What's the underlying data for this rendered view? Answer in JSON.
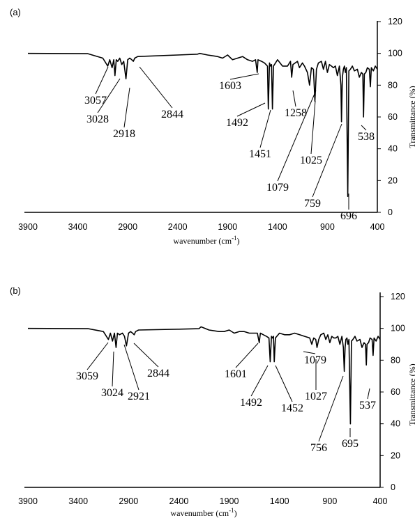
{
  "chart_data": [
    {
      "type": "line",
      "panel_label": "(a)",
      "xlabel": "wavenumber (cm-1)",
      "xlabel_main": "wavenumber (cm",
      "xlabel_sup": "-1",
      "xlabel_close": ")",
      "ylabel": "Transmittance (%)",
      "xlim": [
        3900,
        400
      ],
      "ylim": [
        0,
        120
      ],
      "x_ticks": [
        "3900",
        "3400",
        "2900",
        "2400",
        "1900",
        "1400",
        "900",
        "400"
      ],
      "y_ticks": [
        "0",
        "20",
        "40",
        "60",
        "80",
        "100",
        "120"
      ],
      "series": [
        {
          "x": [
            3900,
            3300,
            3150,
            3100,
            3080,
            3057,
            3040,
            3028,
            3015,
            3000,
            2980,
            2960,
            2940,
            2918,
            2900,
            2880,
            2860,
            2844,
            2830,
            2800,
            2400,
            2200,
            2180,
            2100,
            2000,
            1950,
            1900,
            1850,
            1800,
            1750,
            1700,
            1650,
            1620,
            1603,
            1595,
            1560,
            1530,
            1500,
            1492,
            1480,
            1470,
            1460,
            1451,
            1440,
            1400,
            1350,
            1300,
            1270,
            1258,
            1245,
            1200,
            1180,
            1150,
            1130,
            1100,
            1079,
            1060,
            1040,
            1025,
            1010,
            990,
            960,
            940,
            920,
            900,
            880,
            860,
            840,
            820,
            800,
            780,
            765,
            759,
            750,
            740,
            730,
            720,
            710,
            696,
            685,
            670,
            650,
            630,
            600,
            580,
            560,
            545,
            538,
            530,
            515,
            500,
            480,
            470,
            460,
            440,
            420,
            400
          ],
          "y": [
            100,
            99.8,
            97,
            92,
            96,
            91,
            96,
            86,
            96,
            95,
            97,
            93,
            95,
            84,
            96,
            97,
            96,
            95,
            97,
            98,
            99,
            99.5,
            100,
            99,
            98,
            97,
            99,
            96,
            97,
            98,
            96,
            95,
            96,
            88,
            96,
            95,
            94,
            92,
            65,
            94,
            92,
            93,
            65,
            92,
            96,
            92,
            92,
            95,
            85,
            93,
            95,
            91,
            94,
            92,
            88,
            80,
            91,
            90,
            70,
            90,
            94,
            95,
            90,
            95,
            88,
            93,
            92,
            91,
            92,
            86,
            92,
            80,
            57,
            85,
            90,
            92,
            88,
            91,
            10,
            89,
            90,
            92,
            89,
            90,
            85,
            88,
            87,
            60,
            87,
            88,
            91,
            90,
            79,
            91,
            89,
            92,
            90
          ]
        }
      ],
      "annotations": [
        "3057",
        "3028",
        "2918",
        "2844",
        "1603",
        "1492",
        "1451",
        "1258",
        "1079",
        "1025",
        "759",
        "696",
        "538"
      ]
    },
    {
      "type": "line",
      "panel_label": "(b)",
      "xlabel": "wavenumber (cm-1)",
      "xlabel_main": "wavenumber (cm",
      "xlabel_sup": "-1",
      "xlabel_close": ")",
      "ylabel": "Transmittance (%)",
      "xlim": [
        3900,
        400
      ],
      "ylim": [
        0,
        120
      ],
      "x_ticks": [
        "3900",
        "3400",
        "2900",
        "2400",
        "1900",
        "1400",
        "900",
        "400"
      ],
      "y_ticks": [
        "0",
        "20",
        "40",
        "60",
        "80",
        "100",
        "120"
      ],
      "series": [
        {
          "x": [
            3900,
            3300,
            3150,
            3100,
            3080,
            3059,
            3040,
            3024,
            3010,
            2990,
            2960,
            2940,
            2921,
            2900,
            2880,
            2860,
            2844,
            2830,
            2800,
            2400,
            2200,
            2180,
            2100,
            2000,
            1950,
            1900,
            1850,
            1800,
            1750,
            1700,
            1650,
            1620,
            1601,
            1590,
            1560,
            1530,
            1505,
            1492,
            1480,
            1470,
            1460,
            1452,
            1440,
            1400,
            1350,
            1300,
            1250,
            1200,
            1150,
            1100,
            1079,
            1060,
            1040,
            1027,
            1010,
            990,
            960,
            940,
            920,
            900,
            880,
            860,
            840,
            820,
            800,
            780,
            765,
            756,
            748,
            740,
            730,
            720,
            710,
            695,
            685,
            670,
            650,
            630,
            600,
            580,
            560,
            545,
            537,
            530,
            515,
            500,
            480,
            470,
            460,
            440,
            420,
            400
          ],
          "y": [
            100,
            99.8,
            98,
            93,
            97,
            92,
            97,
            88,
            97,
            96,
            97,
            95,
            89,
            97,
            98,
            97,
            96,
            98,
            99,
            99.5,
            99.8,
            101,
            99,
            98,
            98,
            99,
            97,
            98,
            98,
            97,
            97,
            97,
            91,
            97,
            96,
            95,
            94,
            79,
            95,
            94,
            95,
            79,
            94,
            97,
            96,
            96,
            97,
            96,
            95,
            94,
            90,
            94,
            93,
            88,
            93,
            96,
            97,
            93,
            96,
            91,
            95,
            94,
            94,
            95,
            90,
            95,
            88,
            73,
            88,
            93,
            94,
            90,
            93,
            40,
            92,
            93,
            95,
            92,
            93,
            88,
            91,
            90,
            77,
            90,
            91,
            94,
            93,
            83,
            94,
            92,
            95,
            93
          ]
        }
      ],
      "annotations": [
        "3059",
        "3024",
        "2921",
        "2844",
        "1601",
        "1492",
        "1452",
        "1079",
        "1027",
        "756",
        "695",
        "537"
      ]
    }
  ]
}
